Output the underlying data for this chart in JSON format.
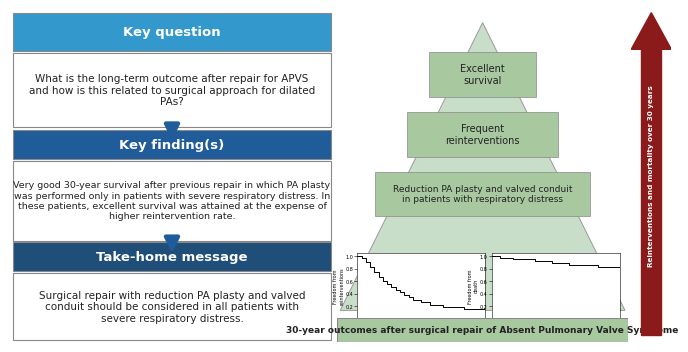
{
  "left_panel": {
    "key_question_header": "Key question",
    "key_question_header_color": "#3399CC",
    "key_question_text": "What is the long-term outcome after repair for APVS\nand how is this related to surgical approach for dilated\nPAs?",
    "key_findings_header": "Key finding(s)",
    "key_findings_header_color": "#1F5C99",
    "key_findings_text": "Very good 30-year survival after previous repair in which PA plasty\nwas performed only in patients with severe respiratory distress. In\nthese patients, excellent survival was attained at the expense of\nhigher reintervention rate.",
    "takehome_header": "Take-home message",
    "takehome_header_color": "#1F4E79",
    "takehome_text": "Surgical repair with reduction PA plasty and valved\nconduit should be considered in all patients with\nsevere respiratory distress.",
    "header_text_color": "#FFFFFF",
    "body_text_color": "#222222",
    "box_border_color": "#888888",
    "arrow_color": "#1F5C99"
  },
  "right_panel": {
    "triangle_color": "#C8DEC8",
    "triangle_outline": "#999999",
    "label1": "Excellent\nsurvival",
    "label2": "Frequent\nreinterventions",
    "label3": "Reduction PA plasty and valved conduit\nin patients with respiratory distress",
    "label_box_color": "#A8C8A0",
    "label_box_border": "#888888",
    "bottom_bar_color": "#A8C8A0",
    "bottom_bar_text": "30-year outcomes after surgical repair of Absent Pulmonary Valve Syndrome",
    "arrow_color": "#8B1A1A",
    "arrow_label": "Reinterventions and mortality over 30 years",
    "bg_color": "#EFEFEF"
  }
}
